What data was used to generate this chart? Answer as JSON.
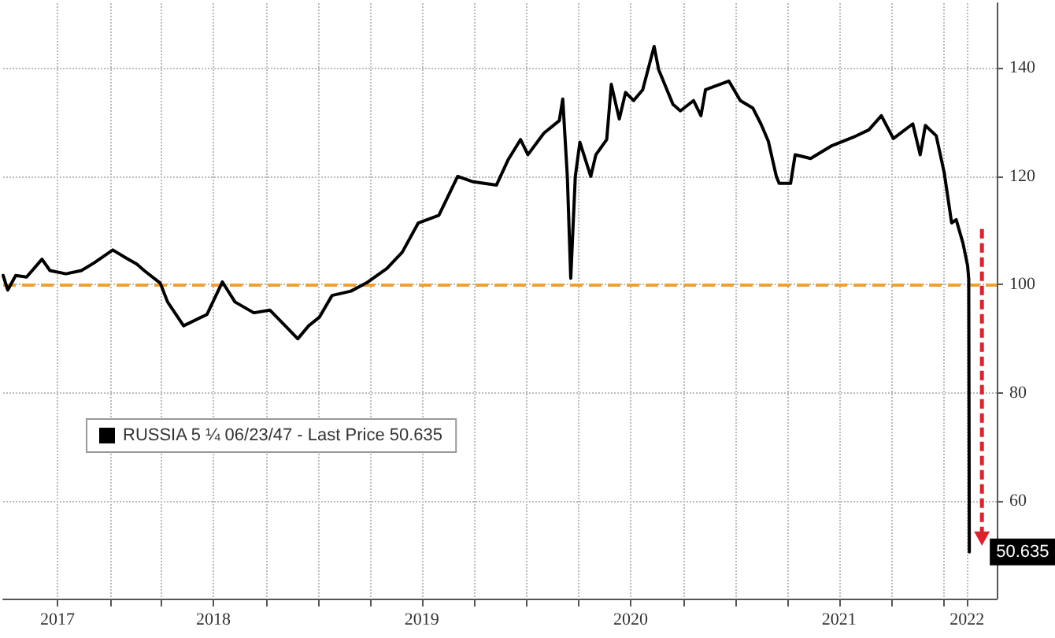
{
  "chart_data": {
    "type": "line",
    "x": [
      "2017-06-28",
      "2017-07-06",
      "2017-07-20",
      "2017-08-08",
      "2017-09-04",
      "2017-09-18",
      "2017-10-16",
      "2017-11-12",
      "2017-12-04",
      "2018-01-06",
      "2018-01-28",
      "2018-02-17",
      "2018-03-02",
      "2018-03-30",
      "2018-04-12",
      "2018-05-10",
      "2018-06-20",
      "2018-07-17",
      "2018-08-08",
      "2018-09-10",
      "2018-10-08",
      "2018-11-04",
      "2018-11-26",
      "2018-12-15",
      "2019-01-03",
      "2019-01-25",
      "2019-02-27",
      "2019-03-26",
      "2019-05-01",
      "2019-05-28",
      "2019-06-25",
      "2019-07-31",
      "2019-09-02",
      "2019-09-29",
      "2019-11-09",
      "2019-11-29",
      "2019-12-21",
      "2020-01-03",
      "2020-01-31",
      "2020-02-27",
      "2020-03-04",
      "2020-03-12",
      "2020-03-18",
      "2020-03-26",
      "2020-04-03",
      "2020-04-22",
      "2020-05-01",
      "2020-05-20",
      "2020-05-28",
      "2020-06-11",
      "2020-06-22",
      "2020-07-06",
      "2020-07-22",
      "2020-08-11",
      "2020-08-19",
      "2020-09-13",
      "2020-09-26",
      "2020-10-19",
      "2020-11-01",
      "2020-11-09",
      "2020-12-20",
      "2021-01-09",
      "2021-01-31",
      "2021-02-14",
      "2021-02-27",
      "2021-03-13",
      "2021-03-18",
      "2021-04-07",
      "2021-04-15",
      "2021-05-12",
      "2021-06-17",
      "2021-07-25",
      "2021-08-22",
      "2021-09-13",
      "2021-10-04",
      "2021-11-07",
      "2021-11-20",
      "2021-11-29",
      "2021-12-18",
      "2022-01-01",
      "2022-01-14",
      "2022-01-22",
      "2022-02-03",
      "2022-02-11",
      "2022-02-13",
      "2022-02-14"
    ],
    "series": [
      {
        "name": "RUSSIA 5 ¼ 06/23/47 - Last Price 50.635",
        "color": "#000000",
        "values": [
          101.7,
          99,
          101.7,
          101.4,
          104.7,
          102.6,
          102,
          102.6,
          104,
          106.4,
          105,
          103.8,
          102.6,
          100.3,
          96.8,
          92.4,
          94.5,
          100.5,
          96.8,
          94.8,
          95.3,
          92.4,
          90,
          92.4,
          94,
          98,
          98.8,
          100.3,
          103,
          106,
          111.4,
          112.8,
          120,
          119,
          118.4,
          123,
          126.8,
          124,
          128,
          130.3,
          134.3,
          120,
          101.2,
          120,
          126.3,
          120,
          124,
          126.8,
          137,
          130.6,
          135.5,
          134,
          136,
          144,
          139.7,
          133.3,
          132.1,
          134,
          131.2,
          136,
          137.6,
          134,
          132.6,
          129.7,
          126.5,
          120,
          118.7,
          118.7,
          124,
          123.3,
          125.6,
          127.2,
          128.6,
          131.2,
          127,
          129.7,
          124,
          129.4,
          127.5,
          120.7,
          111.4,
          112,
          107.6,
          103.5,
          101,
          50.635
        ],
        "value_labels": [
          null,
          null,
          null,
          null,
          null,
          null,
          null,
          null,
          null,
          null,
          null,
          null,
          null,
          null,
          null,
          null,
          null,
          null,
          null,
          null,
          null,
          null,
          null,
          null,
          null,
          null,
          null,
          null,
          null,
          null,
          null,
          null,
          null,
          null,
          null,
          null,
          null,
          null,
          null,
          null,
          null,
          null,
          null,
          null,
          null,
          null,
          null,
          null,
          null,
          null,
          null,
          null,
          null,
          null,
          null,
          null,
          null,
          null,
          null,
          null,
          null,
          null,
          null,
          null,
          null,
          null,
          null,
          null,
          null,
          null,
          null,
          null,
          null,
          null,
          null,
          null,
          null,
          null,
          null,
          null,
          null,
          null,
          null,
          null,
          null,
          "50.635"
        ]
      }
    ],
    "xlim": [
      "2017-06-28",
      "2022-04-03"
    ],
    "xticks": [
      {
        "value": "2017-10-01",
        "label": "2017"
      },
      {
        "value": "2018-01-01",
        "label": null
      },
      {
        "value": "2018-04-01",
        "label": null
      },
      {
        "value": "2018-07-01",
        "label": "2018"
      },
      {
        "value": "2018-10-01",
        "label": null
      },
      {
        "value": "2019-01-01",
        "label": null
      },
      {
        "value": "2019-04-01",
        "label": null
      },
      {
        "value": "2019-07-01",
        "label": "2019"
      },
      {
        "value": "2019-10-01",
        "label": null
      },
      {
        "value": "2020-01-01",
        "label": null
      },
      {
        "value": "2020-04-01",
        "label": null
      },
      {
        "value": "2020-07-01",
        "label": "2020"
      },
      {
        "value": "2020-10-01",
        "label": null
      },
      {
        "value": "2021-01-01",
        "label": null
      },
      {
        "value": "2021-04-01",
        "label": null
      },
      {
        "value": "2021-07-01",
        "label": "2021"
      },
      {
        "value": "2021-10-01",
        "label": null
      },
      {
        "value": "2022-01-01",
        "label": null
      },
      {
        "value": "2022-02-10",
        "label": "2022"
      }
    ],
    "ylim": [
      42,
      152
    ],
    "yticks": [
      60,
      80,
      100,
      120,
      140
    ],
    "ref_lines": [
      {
        "axis": "y",
        "value": 100,
        "color": "#f0a030",
        "line_style": "dashed"
      }
    ],
    "grid": true,
    "legend": "bottom left",
    "marker": "none",
    "line_style": "solid"
  }
}
